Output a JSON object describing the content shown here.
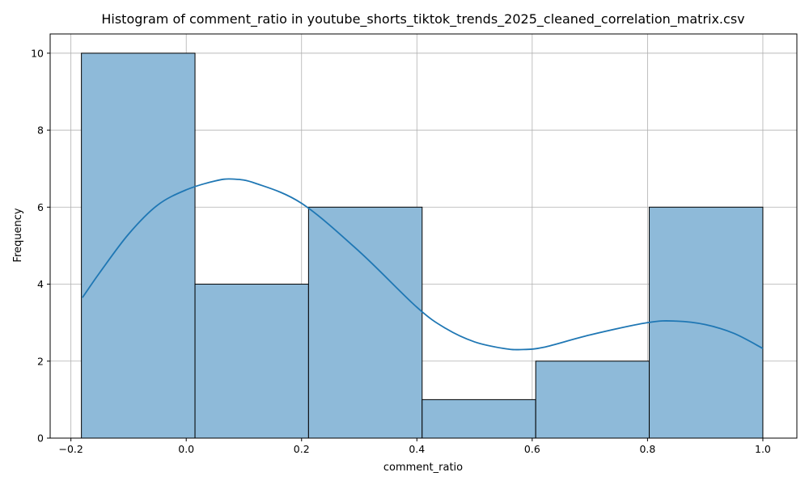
{
  "chart_data": {
    "type": "bar",
    "title": "Histogram of comment_ratio in youtube_shorts_tiktok_trends_2025_cleaned_correlation_matrix.csv",
    "xlabel": "comment_ratio",
    "ylabel": "Frequency",
    "xlim": [
      -0.236,
      1.059
    ],
    "ylim": [
      0,
      10.5
    ],
    "grid": true,
    "x_ticks": [
      -0.2,
      0.0,
      0.2,
      0.4,
      0.6,
      0.8,
      1.0
    ],
    "x_tick_labels": [
      "−0.2",
      "0.0",
      "0.2",
      "0.4",
      "0.6",
      "0.8",
      "1.0"
    ],
    "y_ticks": [
      0,
      2,
      4,
      6,
      8,
      10
    ],
    "y_tick_labels": [
      "0",
      "2",
      "4",
      "6",
      "8",
      "10"
    ],
    "bins": [
      {
        "start": -0.1818,
        "end": 0.0152,
        "count": 10
      },
      {
        "start": 0.0152,
        "end": 0.2121,
        "count": 4
      },
      {
        "start": 0.2121,
        "end": 0.4091,
        "count": 6
      },
      {
        "start": 0.4091,
        "end": 0.6061,
        "count": 1
      },
      {
        "start": 0.6061,
        "end": 0.803,
        "count": 2
      },
      {
        "start": 0.803,
        "end": 1.0,
        "count": 6
      }
    ],
    "kde": {
      "x": [
        -0.18,
        -0.15,
        -0.1,
        -0.05,
        0.0,
        0.05,
        0.08,
        0.12,
        0.2,
        0.3,
        0.4,
        0.45,
        0.5,
        0.55,
        0.58,
        0.62,
        0.7,
        0.8,
        0.85,
        0.9,
        0.95,
        1.0
      ],
      "y": [
        3.65,
        4.3,
        5.3,
        6.05,
        6.45,
        6.68,
        6.73,
        6.62,
        6.1,
        4.85,
        3.4,
        2.85,
        2.5,
        2.33,
        2.3,
        2.36,
        2.68,
        3.0,
        3.04,
        2.95,
        2.72,
        2.33
      ]
    },
    "colors": {
      "bar_fill": "#8ebad9",
      "bar_edge": "#000000",
      "kde_line": "#1f77b4",
      "grid": "#b0b0b0"
    }
  }
}
